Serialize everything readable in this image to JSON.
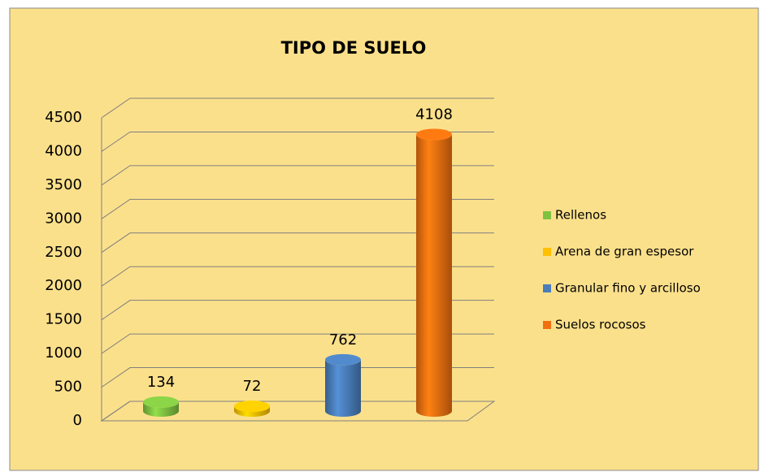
{
  "chart_data": {
    "type": "bar",
    "title": "TIPO DE SUELO",
    "categories": [
      null
    ],
    "series": [
      {
        "name": "Rellenos",
        "color": "#7fc241",
        "values": [
          134
        ]
      },
      {
        "name": "Arena de gran espesor",
        "color": "#ffc000",
        "values": [
          72
        ]
      },
      {
        "name": "Granular fino y arcilloso",
        "color": "#4a7ebb",
        "values": [
          762
        ]
      },
      {
        "name": "Suelos rocosos",
        "color": "#f07010",
        "values": [
          4108
        ]
      }
    ],
    "ylim": [
      0,
      4500
    ],
    "yticks": [
      0,
      500,
      1000,
      1500,
      2000,
      2500,
      3000,
      3500,
      4000,
      4500
    ],
    "grid": true,
    "legend": "right"
  }
}
